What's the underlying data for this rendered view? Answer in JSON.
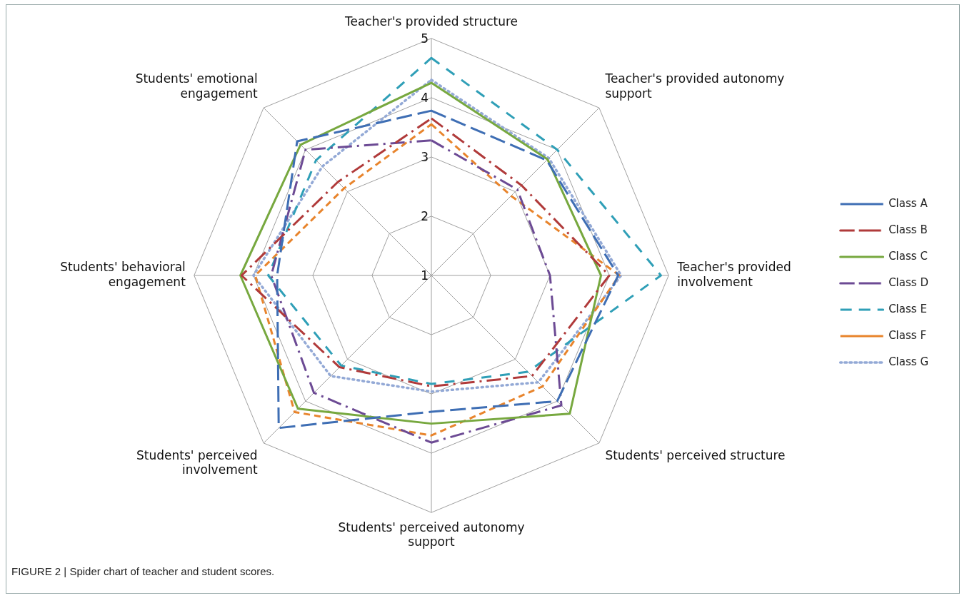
{
  "chart_data": {
    "type": "radar",
    "categories": [
      "Teacher's provided structure",
      "Teacher's provided autonomy support",
      "Teacher's provided involvement",
      "Students' perceived structure",
      "Students' perceived autonomy support",
      "Students' perceived involvement",
      "Students' behavioral engagement",
      "Students' emotional engagement"
    ],
    "series": [
      {
        "name": "Class A",
        "color": "#3e6eb4",
        "line_style": "dashed",
        "values": [
          3.78,
          3.75,
          4.15,
          4.0,
          3.3,
          4.64,
          3.6,
          4.2
        ]
      },
      {
        "name": "Class B",
        "color": "#b03a3a",
        "line_style": "dashdot",
        "values": [
          3.65,
          3.15,
          4.0,
          3.4,
          2.87,
          3.19,
          4.2,
          3.23
        ]
      },
      {
        "name": "Class C",
        "color": "#77a83f",
        "line_style": "solid",
        "values": [
          4.25,
          3.77,
          3.86,
          4.3,
          3.5,
          4.18,
          4.22,
          4.12
        ]
      },
      {
        "name": "Class D",
        "color": "#6c4a94",
        "line_style": "dashdot",
        "values": [
          3.28,
          3.05,
          3.0,
          4.1,
          3.82,
          3.8,
          3.7,
          4.0
        ]
      },
      {
        "name": "Class E",
        "color": "#2f9fb7",
        "line_style": "dashed",
        "values": [
          4.67,
          4.0,
          4.87,
          3.3,
          2.83,
          3.15,
          3.75,
          3.75
        ]
      },
      {
        "name": "Class F",
        "color": "#e8842c",
        "line_style": "dashed",
        "values": [
          3.55,
          2.9,
          4.17,
          3.65,
          3.7,
          4.26,
          3.97,
          3.08
        ]
      },
      {
        "name": "Class G",
        "color": "#93a9d6",
        "line_style": "dotted",
        "values": [
          4.3,
          3.8,
          4.2,
          3.55,
          2.96,
          3.4,
          4.0,
          3.6
        ]
      }
    ],
    "ylim": [
      1,
      5
    ],
    "yticks": [
      1,
      2,
      3,
      4,
      5
    ],
    "grid": true,
    "legend": "right",
    "marker": "none",
    "annotations": [
      "FIGURE 2 | Spider chart of teacher and student scores."
    ]
  }
}
